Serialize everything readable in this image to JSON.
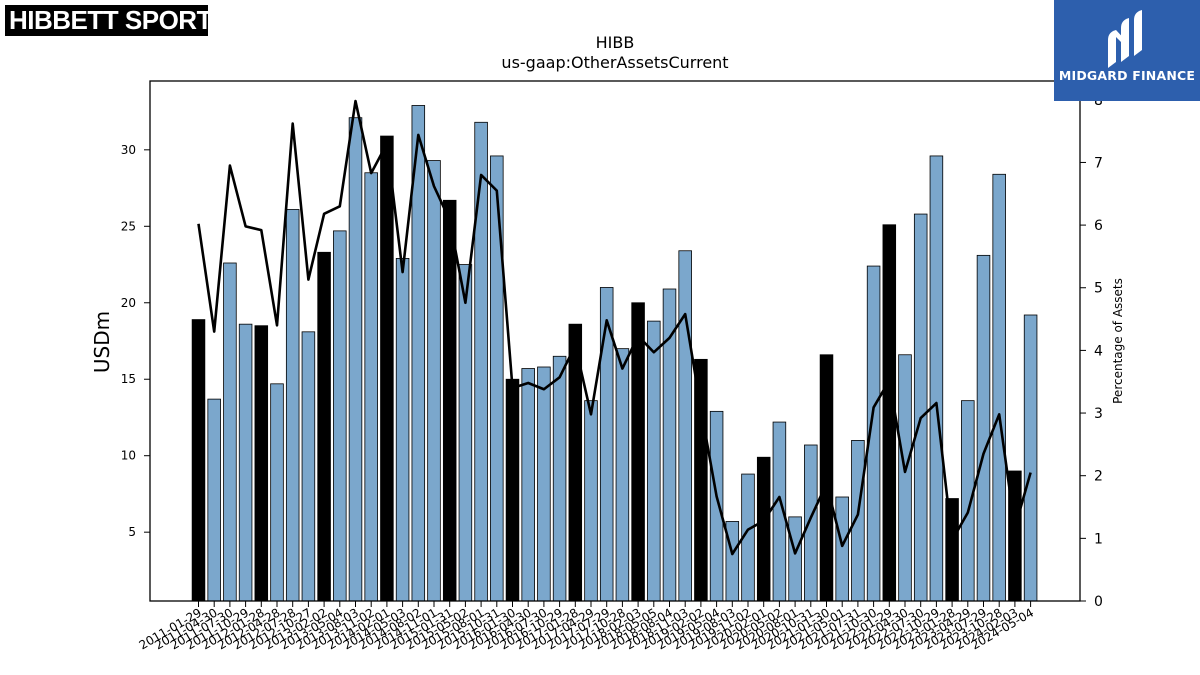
{
  "logos": {
    "left": "HIBBETT SPORTS",
    "left_mark": "®",
    "right": "MIDGARD FINANCE",
    "right_icon": "midgard-m-mark-icon"
  },
  "colors": {
    "bar_light": "#7ba7cc",
    "bar_dark": "#000000",
    "line": "#000000",
    "brand_blue": "#2d5fad"
  },
  "chart_data": {
    "type": "bar",
    "title": "HIBB",
    "subtitle": "us-gaap:OtherAssetsCurrent",
    "ylabel_left": "USDm",
    "ylabel_right": "Percentage of Assets",
    "left_ylim": [
      0.5,
      34.5
    ],
    "left_ticks": [
      5,
      10,
      15,
      20,
      25,
      30
    ],
    "right_ylim": [
      0,
      8.3
    ],
    "right_ticks": [
      0,
      1,
      2,
      3,
      4,
      5,
      6,
      7,
      8
    ],
    "grid": false,
    "categories": [
      "2011-01-29",
      "2011-04-30",
      "2011-07-30",
      "2011-10-29",
      "2012-01-28",
      "2012-04-28",
      "2012-07-28",
      "2012-10-27",
      "2013-02-02",
      "2013-05-04",
      "2013-08-03",
      "2013-11-02",
      "2014-02-01",
      "2014-05-03",
      "2014-08-02",
      "2014-11-01",
      "2015-01-31",
      "2015-05-02",
      "2015-08-01",
      "2015-10-31",
      "2016-01-30",
      "2016-04-30",
      "2016-07-30",
      "2016-10-29",
      "2017-01-28",
      "2017-04-29",
      "2017-07-29",
      "2017-10-28",
      "2018-02-03",
      "2018-05-05",
      "2018-08-04",
      "2018-11-03",
      "2019-02-02",
      "2019-05-04",
      "2019-08-03",
      "2019-11-02",
      "2020-02-01",
      "2020-05-02",
      "2020-08-01",
      "2020-10-31",
      "2021-01-30",
      "2021-05-01",
      "2021-07-31",
      "2021-10-30",
      "2022-01-29",
      "2022-04-30",
      "2022-07-30",
      "2022-10-29",
      "2023-01-28",
      "2023-04-29",
      "2023-07-29",
      "2023-10-28",
      "2024-02-03",
      "2024-05-04"
    ],
    "tick_labels": [
      "2011-01-29",
      "2011-04-30",
      "2011-07-30",
      "2011-10-29",
      "2012-01-28",
      "2012-04-28",
      "2012-07-28",
      "2012-10-27",
      "2013-02-02",
      "2013-05-04",
      "2013-08-03",
      "2013-11-02",
      "2014-02-01",
      "2014-05-03",
      "2014-08-02",
      "2014-11-01",
      "2015-01-31",
      "2015-05-02",
      "2015-08-01",
      "2015-10-31",
      "2016-01-30",
      "2016-04-30",
      "2016-07-30",
      "2016-10-29",
      "2017-01-28",
      "2017-04-29",
      "2017-07-29",
      "2017-10-28",
      "2018-02-03",
      "2018-05-05",
      "2018-08-04",
      "2018-11-03",
      "2019-02-02",
      "2019-05-04",
      "2019-08-03",
      "2019-11-02",
      "2020-02-01",
      "2020-05-02",
      "2020-08-01",
      "2020-10-31",
      "2021-01-30",
      "2021-05-01",
      "2021-07-31",
      "2021-10-30",
      "2022-01-29",
      "2022-04-30",
      "2022-07-30",
      "2022-10-29",
      "2023-01-28",
      "2023-04-29",
      "2023-07-29",
      "2023-10-28",
      "2024-02-03",
      "2024-05-04"
    ],
    "values": [
      18.9,
      13.7,
      22.6,
      18.6,
      18.5,
      14.7,
      26.1,
      18.1,
      23.3,
      24.7,
      32.1,
      28.5,
      30.9,
      22.9,
      32.9,
      29.3,
      26.7,
      22.5,
      31.8,
      29.6,
      15.0,
      15.7,
      15.8,
      16.5,
      18.6,
      13.6,
      21.0,
      17.0,
      20.0,
      18.8,
      20.9,
      23.4,
      16.3,
      12.9,
      5.7,
      8.8,
      9.9,
      12.2,
      6.0,
      10.7,
      16.6,
      7.3,
      11.0,
      22.4,
      25.1,
      16.6,
      25.8,
      29.6,
      7.2,
      13.6,
      23.1,
      28.4,
      9.0,
      19.2
    ],
    "fiscal_year_end": [
      true,
      false,
      false,
      false,
      true,
      false,
      false,
      false,
      true,
      false,
      false,
      false,
      true,
      false,
      false,
      false,
      true,
      false,
      false,
      false,
      true,
      false,
      false,
      false,
      true,
      false,
      false,
      false,
      true,
      false,
      false,
      false,
      true,
      false,
      false,
      false,
      true,
      false,
      false,
      false,
      true,
      false,
      false,
      false,
      true,
      false,
      false,
      false,
      true,
      false,
      false,
      false,
      true,
      false
    ],
    "series": [
      {
        "axis": "right",
        "type": "line",
        "values": [
          6.02,
          4.3,
          6.95,
          5.98,
          5.92,
          4.4,
          7.62,
          5.13,
          6.18,
          6.3,
          7.98,
          6.83,
          7.3,
          5.25,
          7.44,
          6.62,
          6.08,
          4.76,
          6.8,
          6.55,
          3.4,
          3.48,
          3.38,
          3.57,
          4.08,
          2.98,
          4.48,
          3.71,
          4.23,
          3.97,
          4.2,
          4.58,
          3.07,
          1.67,
          0.75,
          1.14,
          1.28,
          1.66,
          0.76,
          1.33,
          1.87,
          0.88,
          1.38,
          3.09,
          3.52,
          2.06,
          2.92,
          3.16,
          0.97,
          1.41,
          2.35,
          2.98,
          1.17,
          2.05
        ]
      }
    ]
  }
}
